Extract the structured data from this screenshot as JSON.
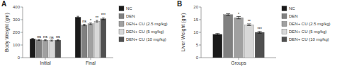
{
  "chart_data": [
    {
      "type": "bar",
      "title": "A",
      "ylabel": "Body Weight (gm)",
      "categories": [
        "Initial",
        "Final"
      ],
      "series": [
        {
          "name": "NC",
          "color": "#1a1a1a",
          "values": [
            148,
            320
          ],
          "errors": [
            4,
            7
          ],
          "annotations": [
            null,
            null
          ]
        },
        {
          "name": "DEN",
          "color": "#808080",
          "values": [
            140,
            258
          ],
          "errors": [
            4,
            6
          ],
          "annotations": [
            "ns",
            "ns"
          ]
        },
        {
          "name": "DEN+ CU (2.5 mg/kg)",
          "color": "#a0a0a0",
          "values": [
            138,
            268
          ],
          "errors": [
            4,
            6
          ],
          "annotations": [
            "ns",
            "*"
          ]
        },
        {
          "name": "DEN+ CU (5 mg/kg)",
          "color": "#d8d8d8",
          "values": [
            135,
            288
          ],
          "errors": [
            4,
            7
          ],
          "annotations": [
            "ns",
            "**"
          ]
        },
        {
          "name": "DEN+ CU (10 mg/kg)",
          "color": "#505050",
          "values": [
            138,
            307
          ],
          "errors": [
            4,
            7
          ],
          "annotations": [
            "ns",
            "***"
          ]
        }
      ],
      "ylim": [
        0,
        400
      ],
      "yticks": [
        0,
        100,
        200,
        300,
        400
      ],
      "legend": "right"
    },
    {
      "type": "bar",
      "title": "B",
      "ylabel": "Liver Weight (gm)",
      "categories": [
        "Groups"
      ],
      "series": [
        {
          "name": "NC",
          "color": "#1a1a1a",
          "values": [
            9.2
          ],
          "errors": [
            0.35
          ],
          "annotations": [
            null
          ]
        },
        {
          "name": "DEN",
          "color": "#808080",
          "values": [
            17.0
          ],
          "errors": [
            0.35
          ],
          "annotations": [
            null
          ]
        },
        {
          "name": "DEN+ CU (2.5 mg/kg)",
          "color": "#a0a0a0",
          "values": [
            15.8
          ],
          "errors": [
            0.45
          ],
          "annotations": [
            "*"
          ]
        },
        {
          "name": "DEN+ CU (5 mg/kg)",
          "color": "#d8d8d8",
          "values": [
            13.0
          ],
          "errors": [
            0.35
          ],
          "annotations": [
            "**"
          ]
        },
        {
          "name": "DEN+ CU (10 mg/kg)",
          "color": "#505050",
          "values": [
            10.0
          ],
          "errors": [
            0.35
          ],
          "annotations": [
            "***"
          ]
        }
      ],
      "ylim": [
        0,
        20
      ],
      "yticks": [
        0,
        5,
        10,
        15,
        20
      ],
      "legend": "right"
    }
  ]
}
